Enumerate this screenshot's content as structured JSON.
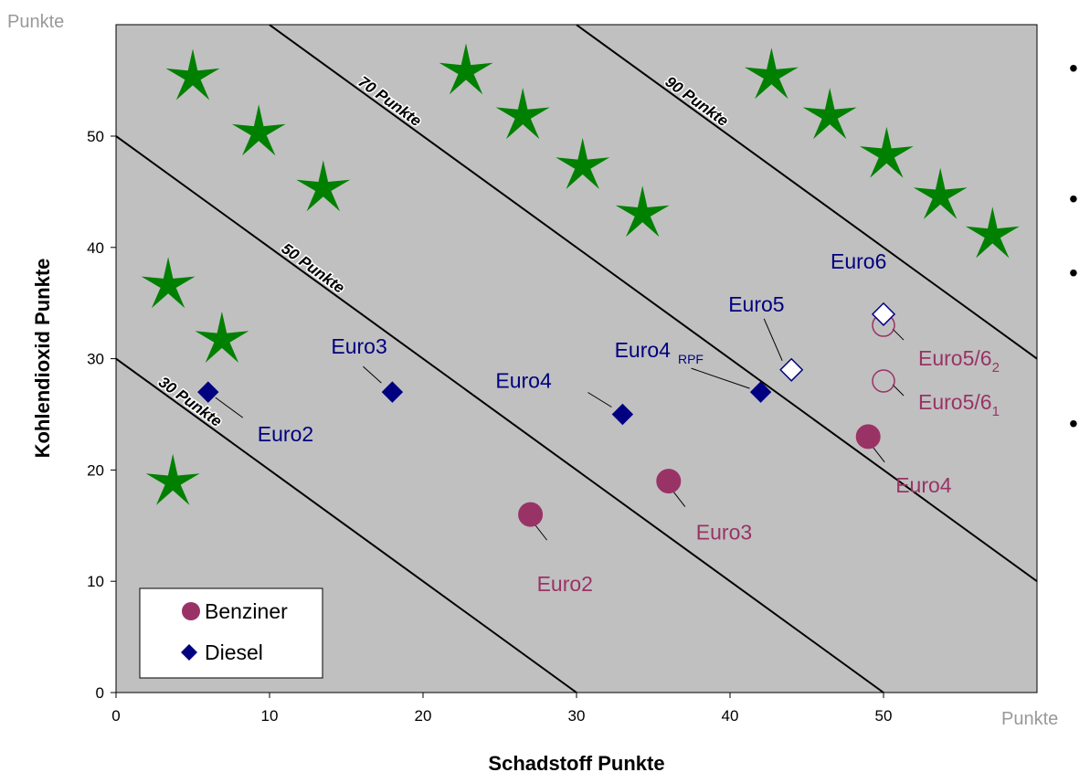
{
  "chart_data": {
    "type": "scatter",
    "title": "",
    "xlabel": "Schadstoff Punkte",
    "ylabel": "Kohlendioxid Punkte",
    "x_unit_label": "Punkte",
    "y_unit_label": "Punkte",
    "xlim": [
      0,
      60
    ],
    "ylim": [
      0,
      60
    ],
    "x_ticks": [
      "0",
      "10",
      "20",
      "30",
      "40",
      "50"
    ],
    "y_ticks": [
      "0",
      "10",
      "20",
      "30",
      "40",
      "50"
    ],
    "grid": false,
    "legend_position": "bottom-left",
    "colors": {
      "plot_bg": "#c0c0c0",
      "benziner": "#993366",
      "diesel": "#000080",
      "star": "#008000"
    },
    "isolines": [
      {
        "label": "30 Punkte",
        "total": 30
      },
      {
        "label": "50 Punkte",
        "total": 50
      },
      {
        "label": "70 Punkte",
        "total": 70
      },
      {
        "label": "90 Punkte",
        "total": 90
      }
    ],
    "series": [
      {
        "name": "Benziner",
        "marker": "circle",
        "points": [
          {
            "label": "Euro2",
            "x": 27,
            "y": 16,
            "filled": true
          },
          {
            "label": "Euro3",
            "x": 36,
            "y": 19,
            "filled": true
          },
          {
            "label": "Euro4",
            "x": 49,
            "y": 23,
            "filled": true
          },
          {
            "label": "Euro5/6",
            "sub": "1",
            "x": 50,
            "y": 28,
            "filled": false
          },
          {
            "label": "Euro5/6",
            "sub": "2",
            "x": 50,
            "y": 33,
            "filled": false
          }
        ]
      },
      {
        "name": "Diesel",
        "marker": "diamond",
        "points": [
          {
            "label": "Euro2",
            "x": 6,
            "y": 27,
            "filled": true
          },
          {
            "label": "Euro3",
            "x": 18,
            "y": 27,
            "filled": true
          },
          {
            "label": "Euro4",
            "x": 33,
            "y": 25,
            "filled": true
          },
          {
            "label": "Euro4",
            "sub": "RPF",
            "x": 42,
            "y": 27,
            "filled": true
          },
          {
            "label": "Euro5",
            "x": 44,
            "y": 29,
            "filled": false
          },
          {
            "label": "Euro6",
            "x": 50,
            "y": 34,
            "filled": false
          }
        ]
      }
    ],
    "decorations": {
      "star_icon": "green-star-icon",
      "stars": [
        [
          5,
          55.3
        ],
        [
          9.3,
          50.3
        ],
        [
          13.5,
          45.3
        ],
        [
          22.8,
          55.8
        ],
        [
          26.5,
          51.8
        ],
        [
          30.4,
          47.3
        ],
        [
          34.3,
          43
        ],
        [
          42.7,
          55.4
        ],
        [
          46.5,
          51.8
        ],
        [
          50.2,
          48.3
        ],
        [
          53.7,
          44.6
        ],
        [
          57.1,
          41.1
        ],
        [
          3.4,
          36.6
        ],
        [
          6.9,
          31.7
        ],
        [
          3.7,
          18.9
        ]
      ]
    }
  },
  "bullets": {
    "count": 4,
    "glyph": "•"
  }
}
